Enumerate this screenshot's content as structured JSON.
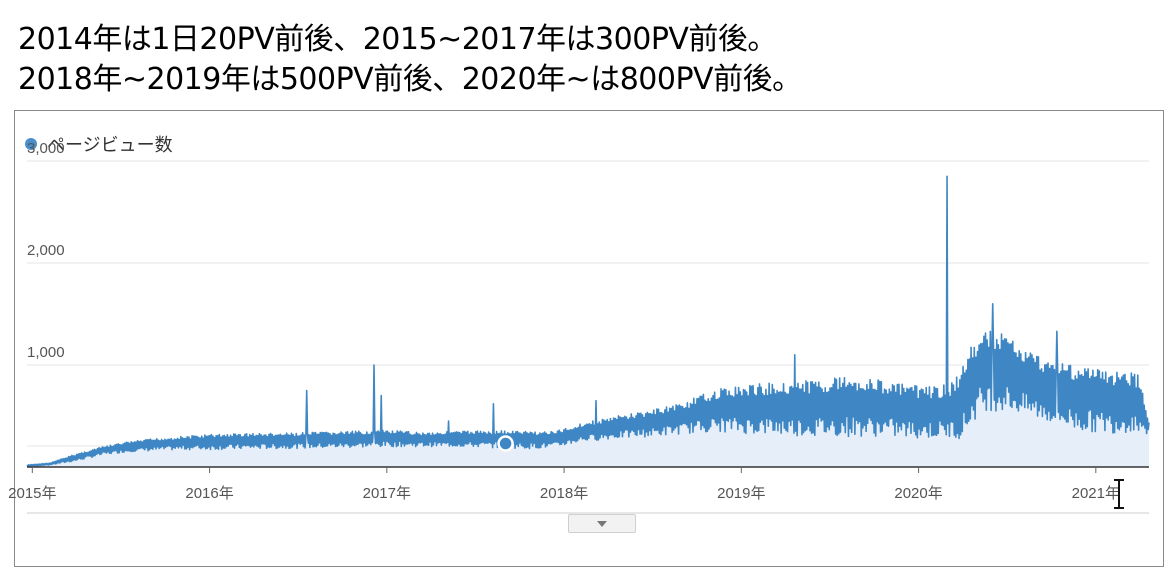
{
  "caption": {
    "line1": "2014年は1日20PV前後、2015~2017年は300PV前後。",
    "line2": "2018年~2019年は500PV前後、2020年~は800PV前後。"
  },
  "colors": {
    "series": "#3e87c4",
    "fill": "#e6eef9",
    "grid": "#e4e4e4"
  },
  "chart_data": {
    "type": "area",
    "series": [
      {
        "name": "ページビュー数"
      }
    ],
    "ylim": [
      0,
      3000
    ],
    "yticks": [
      {
        "value": 1000,
        "label": "1,000"
      },
      {
        "value": 2000,
        "label": "2,000"
      },
      {
        "value": 3000,
        "label": "3,000"
      }
    ],
    "xlim": [
      2014.97,
      2021.3
    ],
    "xticks": [
      {
        "value": 2015.0,
        "label": "2015年"
      },
      {
        "value": 2016.0,
        "label": "2016年"
      },
      {
        "value": 2017.0,
        "label": "2017年"
      },
      {
        "value": 2018.0,
        "label": "2018年"
      },
      {
        "value": 2019.0,
        "label": "2019年"
      },
      {
        "value": 2020.0,
        "label": "2020年"
      },
      {
        "value": 2021.0,
        "label": "2021年"
      }
    ],
    "upper": [
      [
        2014.97,
        20
      ],
      [
        2015.1,
        40
      ],
      [
        2015.25,
        130
      ],
      [
        2015.4,
        200
      ],
      [
        2015.55,
        250
      ],
      [
        2015.7,
        280
      ],
      [
        2015.85,
        300
      ],
      [
        2016.0,
        320
      ],
      [
        2016.2,
        330
      ],
      [
        2016.4,
        330
      ],
      [
        2016.6,
        340
      ],
      [
        2016.8,
        350
      ],
      [
        2017.0,
        360
      ],
      [
        2017.2,
        340
      ],
      [
        2017.4,
        350
      ],
      [
        2017.6,
        360
      ],
      [
        2017.8,
        350
      ],
      [
        2017.95,
        350
      ],
      [
        2018.1,
        430
      ],
      [
        2018.3,
        500
      ],
      [
        2018.5,
        560
      ],
      [
        2018.7,
        650
      ],
      [
        2018.85,
        760
      ],
      [
        2019.0,
        800
      ],
      [
        2019.2,
        830
      ],
      [
        2019.4,
        850
      ],
      [
        2019.6,
        900
      ],
      [
        2019.8,
        850
      ],
      [
        2019.95,
        800
      ],
      [
        2020.1,
        790
      ],
      [
        2020.2,
        830
      ],
      [
        2020.3,
        1200
      ],
      [
        2020.4,
        1350
      ],
      [
        2020.5,
        1300
      ],
      [
        2020.6,
        1150
      ],
      [
        2020.75,
        1050
      ],
      [
        2020.9,
        1000
      ],
      [
        2021.05,
        950
      ],
      [
        2021.15,
        950
      ],
      [
        2021.25,
        900
      ],
      [
        2021.3,
        450
      ]
    ],
    "lower": [
      [
        2014.97,
        5
      ],
      [
        2015.1,
        20
      ],
      [
        2015.25,
        60
      ],
      [
        2015.4,
        120
      ],
      [
        2015.55,
        150
      ],
      [
        2015.7,
        160
      ],
      [
        2015.85,
        170
      ],
      [
        2016.0,
        170
      ],
      [
        2016.4,
        180
      ],
      [
        2016.8,
        190
      ],
      [
        2017.0,
        200
      ],
      [
        2017.4,
        200
      ],
      [
        2017.8,
        180
      ],
      [
        2017.95,
        190
      ],
      [
        2018.1,
        250
      ],
      [
        2018.3,
        280
      ],
      [
        2018.5,
        300
      ],
      [
        2018.7,
        330
      ],
      [
        2018.85,
        350
      ],
      [
        2019.0,
        330
      ],
      [
        2019.4,
        300
      ],
      [
        2019.8,
        300
      ],
      [
        2019.95,
        280
      ],
      [
        2020.1,
        280
      ],
      [
        2020.25,
        280
      ],
      [
        2020.35,
        550
      ],
      [
        2020.5,
        550
      ],
      [
        2020.7,
        450
      ],
      [
        2020.9,
        350
      ],
      [
        2021.1,
        330
      ],
      [
        2021.25,
        350
      ],
      [
        2021.3,
        300
      ]
    ],
    "spikes": [
      {
        "x": 2016.55,
        "y": 750
      },
      {
        "x": 2016.93,
        "y": 1000
      },
      {
        "x": 2016.97,
        "y": 700
      },
      {
        "x": 2017.35,
        "y": 450
      },
      {
        "x": 2017.6,
        "y": 620
      },
      {
        "x": 2018.18,
        "y": 650
      },
      {
        "x": 2019.3,
        "y": 1100
      },
      {
        "x": 2020.16,
        "y": 2850
      },
      {
        "x": 2020.42,
        "y": 1600
      },
      {
        "x": 2020.78,
        "y": 1330
      }
    ],
    "highlight_point": {
      "x": 2017.67,
      "y": 230
    }
  }
}
